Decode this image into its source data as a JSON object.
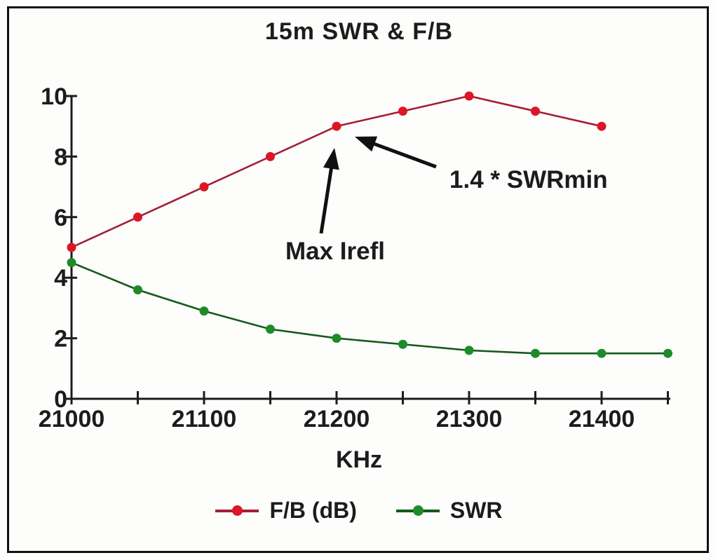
{
  "chart_data": {
    "type": "line",
    "title": "15m SWR & F/B",
    "xlabel": "KHz",
    "ylabel": "",
    "x": [
      21000,
      21050,
      21100,
      21150,
      21200,
      21250,
      21300,
      21350,
      21400,
      21450
    ],
    "series": [
      {
        "name": "F/B (dB)",
        "values": [
          5,
          6,
          7,
          8,
          9,
          9.5,
          10,
          9.5,
          9,
          null
        ],
        "line_color": "#a02035",
        "point_color": "#dd1525"
      },
      {
        "name": "SWR",
        "values": [
          4.5,
          3.6,
          2.9,
          2.3,
          2.0,
          1.8,
          1.6,
          1.5,
          1.5,
          1.5
        ],
        "line_color": "#14591c",
        "point_color": "#1d8c28"
      }
    ],
    "xlim": [
      21000,
      21452
    ],
    "ylim": [
      0,
      10
    ],
    "x_ticks": [
      21000,
      21050,
      21100,
      21150,
      21200,
      21250,
      21300,
      21350,
      21400,
      21450
    ],
    "x_labeled_ticks": [
      21000,
      21100,
      21200,
      21300,
      21400
    ],
    "y_ticks": [
      0,
      2,
      4,
      6,
      8,
      10
    ],
    "grid": false,
    "legend_position": "bottom-center",
    "axis_color": "#1c1c1c",
    "annotations": [
      {
        "text": "Max Irefl"
      },
      {
        "text": "1.4 * SWRmin"
      }
    ]
  }
}
